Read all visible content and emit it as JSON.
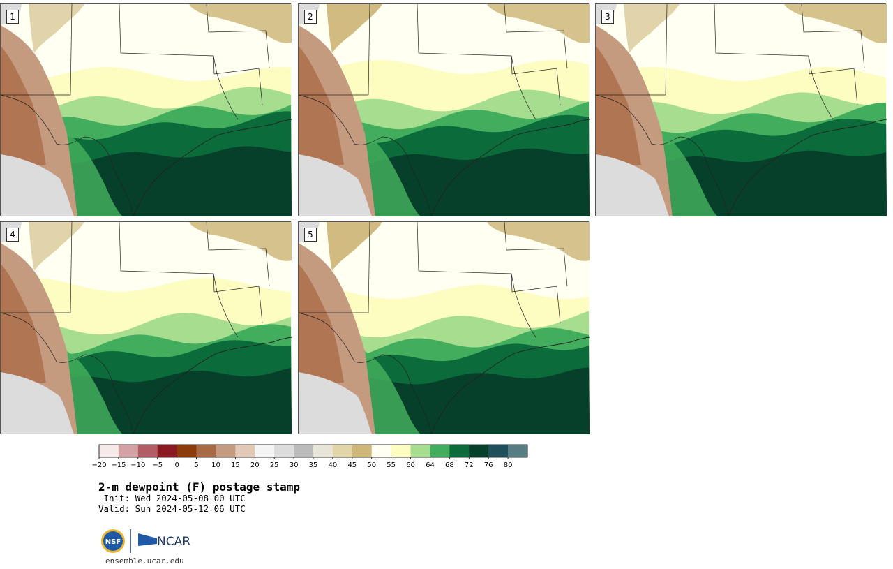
{
  "panels": [
    {
      "label": "1",
      "variant": 1
    },
    {
      "label": "2",
      "variant": 2
    },
    {
      "label": "3",
      "variant": 3
    },
    {
      "label": "4",
      "variant": 4
    },
    {
      "label": "5",
      "variant": 5
    }
  ],
  "colorbar": {
    "colors": [
      "#f6e9e9",
      "#d4a1a5",
      "#b25c66",
      "#8b1a22",
      "#8c3c0c",
      "#a86a45",
      "#c59b80",
      "#e2c8b6",
      "#f4f4f4",
      "#dcdcdc",
      "#bbbbbb",
      "#e8e4d8",
      "#e2d5a8",
      "#cfb77a",
      "#fffff2",
      "#fdfdc2",
      "#a6dd8f",
      "#42ad5c",
      "#0b6b3a",
      "#06402a",
      "#1f4f5a",
      "#577d84"
    ],
    "ticks": [
      "−20",
      "−15",
      "−10",
      "−5",
      "0",
      "5",
      "10",
      "15",
      "20",
      "25",
      "30",
      "35",
      "40",
      "45",
      "50",
      "55",
      "60",
      "64",
      "68",
      "72",
      "76",
      "80"
    ]
  },
  "title": "2-m dewpoint (F) postage stamp",
  "init_line": " Init: Wed 2024-05-08 00 UTC",
  "valid_line": "Valid: Sun 2024-05-12 06 UTC",
  "logo": {
    "left_text": "NSF",
    "right_text": "NCAR"
  },
  "url": "ensemble.ucar.edu"
}
